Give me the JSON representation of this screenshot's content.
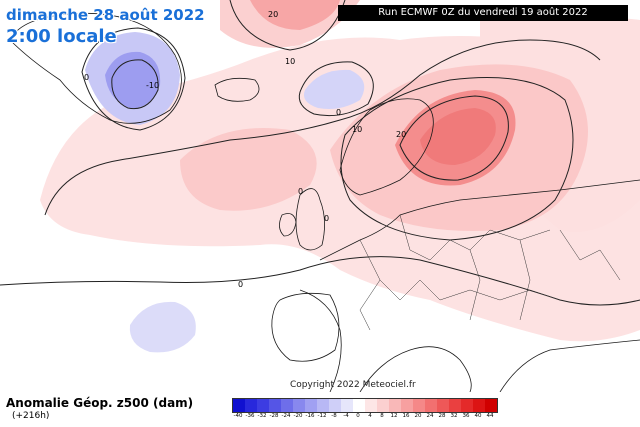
{
  "header": {
    "date_text": "dimanche 28 août 2022",
    "time_text": "2:00 locale",
    "run_text": "Run ECMWF 0Z du vendredi 19 août 2022"
  },
  "footer": {
    "parameter_text": "Anomalie Géop. z500 (dam)",
    "lead_text": "(+216h)",
    "copyright_text": "Copyright 2022 Meteociel.fr"
  },
  "legend": {
    "ticks": [
      "-40",
      "-36",
      "-32",
      "-28",
      "-24",
      "-20",
      "-16",
      "-12",
      "-8",
      "-4",
      "0",
      "4",
      "8",
      "12",
      "16",
      "20",
      "24",
      "28",
      "32",
      "36",
      "40",
      "44"
    ],
    "colors": [
      "#1010d0",
      "#2828dc",
      "#3c3ce2",
      "#5555e6",
      "#6e6eea",
      "#8888ee",
      "#a0a0f2",
      "#b8b8f5",
      "#cfcff8",
      "#e6e6fb",
      "#ffffff",
      "#fde6e6",
      "#fbd0d0",
      "#f9b8b8",
      "#f7a0a0",
      "#f58888",
      "#f27070",
      "#ee5858",
      "#ea4040",
      "#e42a2a",
      "#dc1414",
      "#d00000"
    ]
  },
  "contour_labels": [
    "-10",
    "0",
    "20",
    "0",
    "10",
    "10",
    "20",
    "0",
    "0",
    "0"
  ],
  "colors": {
    "title": "#1a70d8",
    "positive_anomaly": "#f3a0a0",
    "negative_anomaly": "#a8a8f0"
  }
}
